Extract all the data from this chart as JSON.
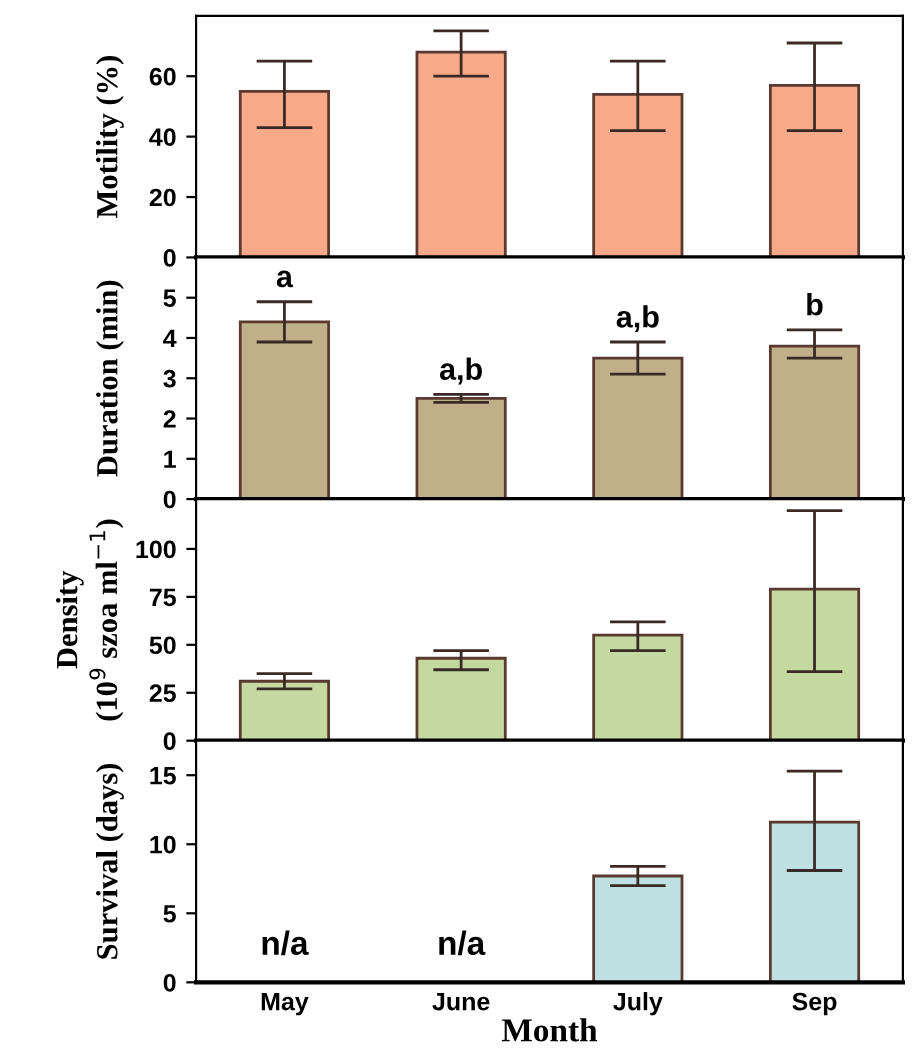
{
  "chart_data": [
    {
      "type": "bar",
      "ylabel": "Motility (%)",
      "categories": [
        "May",
        "June",
        "July",
        "Sep"
      ],
      "tick_labels": "y",
      "ylim": [
        0,
        80
      ],
      "yticks": [
        0,
        20,
        40,
        60
      ],
      "series": [
        {
          "color": "#f7a98a",
          "values": [
            55,
            68,
            54,
            57
          ],
          "errors": [
            [
              43,
              65
            ],
            [
              60,
              75
            ],
            [
              42,
              65
            ],
            [
              42,
              71
            ]
          ]
        }
      ]
    },
    {
      "type": "bar",
      "ylabel": "Duration (min)",
      "categories": [
        "May",
        "June",
        "July",
        "Sep"
      ],
      "tick_labels": "y",
      "ylim": [
        0,
        6
      ],
      "yticks": [
        0,
        1,
        2,
        3,
        4,
        5
      ],
      "series": [
        {
          "color": "#bfb08a",
          "values": [
            4.4,
            2.5,
            3.5,
            3.8
          ],
          "errors": [
            [
              3.9,
              4.9
            ],
            [
              2.4,
              2.6
            ],
            [
              3.1,
              3.9
            ],
            [
              3.5,
              4.2
            ]
          ]
        }
      ],
      "annotations": [
        {
          "text": "a",
          "x": "May",
          "y": 4.9
        },
        {
          "text": "a,b",
          "x": "June",
          "y": 2.6
        },
        {
          "text": "a,b",
          "x": "July",
          "y": 3.9
        },
        {
          "text": "b",
          "x": "Sep",
          "y": 4.2
        }
      ]
    },
    {
      "type": "bar",
      "ylabel": "Density\n(10$^{9}$ szoa ml$^{−1}$)",
      "categories": [
        "May",
        "June",
        "July",
        "Sep"
      ],
      "tick_labels": "y",
      "ylim": [
        0,
        126
      ],
      "yticks": [
        0,
        25,
        50,
        75,
        100
      ],
      "series": [
        {
          "color": "#c3d9a0",
          "values": [
            31,
            43,
            55,
            79
          ],
          "errors": [
            [
              27,
              35
            ],
            [
              37,
              47
            ],
            [
              47,
              62
            ],
            [
              36,
              120
            ]
          ]
        }
      ]
    },
    {
      "type": "bar",
      "ylabel": "Survival (days)",
      "xlabel": "Month",
      "categories": [
        "May",
        "June",
        "July",
        "Sep"
      ],
      "ylim": [
        0,
        17.5
      ],
      "yticks": [
        0,
        5,
        10,
        15
      ],
      "series": [
        {
          "color": "#bfe0e2",
          "values": [
            null,
            null,
            7.7,
            11.6
          ],
          "errors": [
            null,
            null,
            [
              7.0,
              8.4
            ],
            [
              8.1,
              15.3
            ]
          ]
        }
      ],
      "annotations": [
        "n/a",
        "n/a"
      ]
    }
  ]
}
